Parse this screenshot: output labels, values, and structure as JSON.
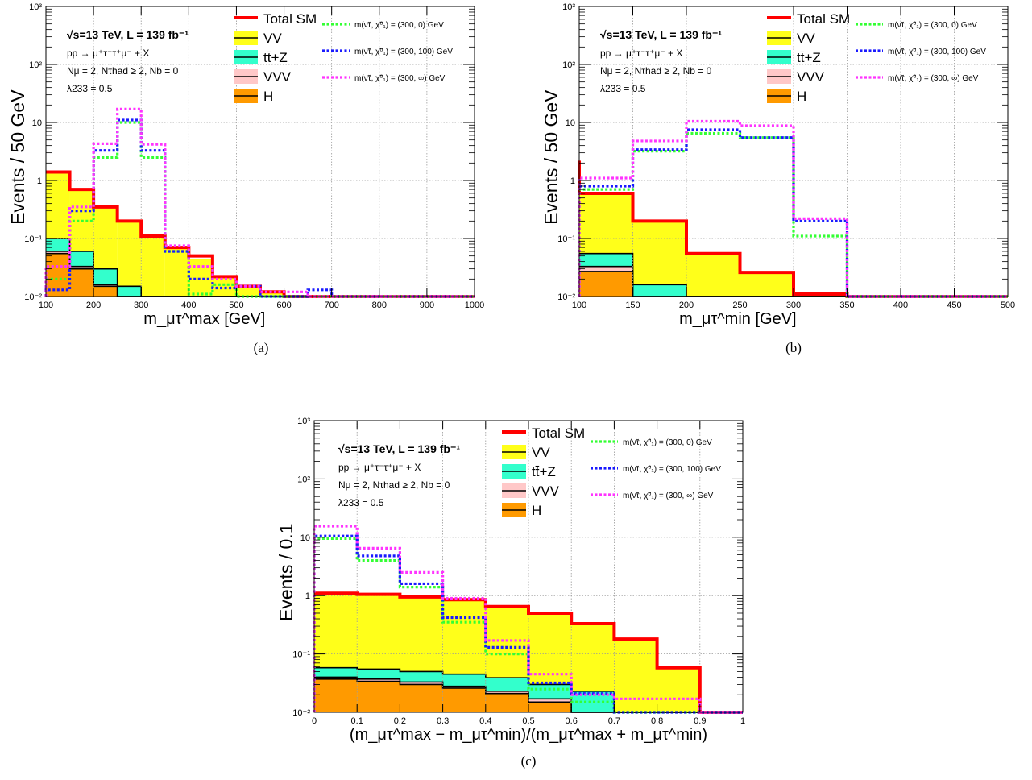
{
  "colors": {
    "total_sm": "#ff0000",
    "vv": "#ffff1a",
    "ttz": "#33ffcc",
    "vvv": "#ffc8c8",
    "h": "#ff9a00",
    "sig1": "#33ff33",
    "sig2": "#1a1aff",
    "sig3": "#ff33ff",
    "grid": "#999999"
  },
  "legend": {
    "total_sm": "Total SM",
    "vv": "VV",
    "ttz": "tt̄+Z",
    "vvv": "VVV",
    "h": "H",
    "sig1": "m(ν̃τ, χ̃⁰₁) = (300, 0) GeV",
    "sig2": "m(ν̃τ, χ̃⁰₁) = (300, 100) GeV",
    "sig3": "m(ν̃τ, χ̃⁰₁) = (300, ∞) GeV"
  },
  "info": {
    "line1": "√s=13 TeV, L = 139 fb⁻¹",
    "line2": "pp → μ⁺τ⁻τ⁺μ⁻ + X",
    "line3": "Nμ = 2, Nτhad ≥ 2, Nb = 0",
    "line4": "λ233 = 0.5"
  },
  "captions": {
    "a": "(a)",
    "b": "(b)",
    "c": "(c)"
  },
  "chart_data": [
    {
      "id": "a",
      "type": "bar",
      "stacked": true,
      "log_y": true,
      "ylabel": "Events / 50 GeV",
      "xlabel": "m_μτ^max [GeV]",
      "xlim": [
        100,
        1000
      ],
      "ylim": [
        0.01,
        1000
      ],
      "grid": true,
      "x_ticks": [
        100,
        200,
        300,
        400,
        500,
        600,
        700,
        800,
        900,
        1000
      ],
      "y_ticks": [
        "10⁻²",
        "10⁻¹",
        "1",
        "10",
        "10²",
        "10³"
      ],
      "edges": [
        100,
        150,
        200,
        250,
        300,
        350,
        400,
        450,
        500,
        550,
        600,
        650,
        700,
        750,
        800,
        850,
        900,
        950,
        1000
      ],
      "stack": [
        {
          "name": "H",
          "values": [
            0.055,
            0.03,
            0.015,
            0.01,
            0.01,
            0.01,
            0.01,
            0.01,
            0.01,
            0.01,
            0.01,
            0.01,
            0.01,
            0.01,
            0.01,
            0.01,
            0.01,
            0.01
          ]
        },
        {
          "name": "VVV",
          "values": [
            0.06,
            0.033,
            0.016,
            0.01,
            0.01,
            0.01,
            0.01,
            0.01,
            0.01,
            0.01,
            0.01,
            0.01,
            0.01,
            0.01,
            0.01,
            0.01,
            0.01,
            0.01
          ]
        },
        {
          "name": "ttZ",
          "values": [
            0.1,
            0.06,
            0.03,
            0.015,
            0.01,
            0.01,
            0.01,
            0.01,
            0.01,
            0.01,
            0.01,
            0.01,
            0.01,
            0.01,
            0.01,
            0.01,
            0.01,
            0.01
          ]
        },
        {
          "name": "VV",
          "values": [
            1.4,
            0.7,
            0.35,
            0.2,
            0.11,
            0.07,
            0.045,
            0.022,
            0.015,
            0.012,
            0.01,
            0.01,
            0.01,
            0.01,
            0.01,
            0.01,
            0.01,
            0.01
          ]
        }
      ],
      "total": [
        1.4,
        0.7,
        0.35,
        0.2,
        0.11,
        0.07,
        0.05,
        0.022,
        0.015,
        0.012,
        0.01,
        0.01,
        0.01,
        0.01,
        0.01,
        0.01,
        0.01,
        0.01
      ],
      "signals": [
        {
          "name": "sig1",
          "values": [
            0.02,
            0.2,
            2.5,
            10,
            2.5,
            0.06,
            0.011,
            0.016,
            0.01,
            0.01,
            0.01,
            0.01,
            0.01,
            0.01,
            0.01,
            0.01,
            0.01,
            0.01
          ]
        },
        {
          "name": "sig2",
          "values": [
            0.013,
            0.3,
            3.3,
            11,
            3.3,
            0.06,
            0.02,
            0.014,
            0.015,
            0.01,
            0.01,
            0.013,
            0.01,
            0.01,
            0.01,
            0.01,
            0.01,
            0.01
          ]
        },
        {
          "name": "sig3",
          "values": [
            0.033,
            0.35,
            4.3,
            17,
            4.2,
            0.075,
            0.033,
            0.02,
            0.015,
            0.012,
            0.012,
            0.01,
            0.01,
            0.01,
            0.01,
            0.01,
            0.01,
            0.01
          ]
        }
      ]
    },
    {
      "id": "b",
      "type": "bar",
      "stacked": true,
      "log_y": true,
      "ylabel": "Events / 50 GeV",
      "xlabel": "m_μτ^min [GeV]",
      "xlim": [
        100,
        500
      ],
      "ylim": [
        0.01,
        1000
      ],
      "grid": true,
      "x_ticks": [
        100,
        150,
        200,
        250,
        300,
        350,
        400,
        450,
        500
      ],
      "y_ticks": [
        "10⁻²",
        "10⁻¹",
        "1",
        "10",
        "10²",
        "10³"
      ],
      "edges": [
        100,
        150,
        200,
        250,
        300,
        350,
        400,
        450,
        500
      ],
      "stack": [
        {
          "name": "H",
          "values": [
            0.027,
            0.01,
            0.01,
            0.01,
            0.01,
            0.01,
            0.01,
            0.01
          ]
        },
        {
          "name": "VVV",
          "values": [
            0.033,
            0.01,
            0.01,
            0.01,
            0.01,
            0.01,
            0.01,
            0.01
          ]
        },
        {
          "name": "ttZ",
          "values": [
            0.055,
            0.016,
            0.01,
            0.01,
            0.01,
            0.01,
            0.01,
            0.01
          ]
        },
        {
          "name": "VV",
          "values": [
            0.6,
            0.2,
            0.055,
            0.026,
            0.011,
            0.01,
            0.01,
            0.01
          ]
        }
      ],
      "total": [
        0.6,
        0.2,
        0.055,
        0.026,
        0.011,
        0.01,
        0.01,
        0.01
      ],
      "total_first_bin_peak": 2.2,
      "signals": [
        {
          "name": "sig1",
          "values": [
            0.7,
            3.2,
            6.5,
            5.5,
            0.11,
            0.01,
            0.01,
            0.01
          ]
        },
        {
          "name": "sig2",
          "values": [
            0.8,
            3.4,
            7.5,
            5.5,
            0.2,
            0.01,
            0.01,
            0.01
          ]
        },
        {
          "name": "sig3",
          "values": [
            1.1,
            4.8,
            10.5,
            8.8,
            0.22,
            0.01,
            0.01,
            0.01
          ]
        }
      ]
    },
    {
      "id": "c",
      "type": "bar",
      "stacked": true,
      "log_y": true,
      "ylabel": "Events / 0.1",
      "xlabel": "(m_μτ^max − m_μτ^min)/(m_μτ^max + m_μτ^min)",
      "xlim": [
        0,
        1
      ],
      "ylim": [
        0.01,
        1000
      ],
      "grid": true,
      "x_ticks": [
        0,
        0.1,
        0.2,
        0.3,
        0.4,
        0.5,
        0.6,
        0.7,
        0.8,
        0.9,
        1
      ],
      "y_ticks": [
        "10⁻²",
        "10⁻¹",
        "1",
        "10",
        "10²",
        "10³"
      ],
      "edges": [
        0,
        0.1,
        0.2,
        0.3,
        0.4,
        0.5,
        0.6,
        0.7,
        0.8,
        0.9,
        1
      ],
      "stack": [
        {
          "name": "H",
          "values": [
            0.037,
            0.034,
            0.03,
            0.026,
            0.021,
            0.015,
            0.01,
            0.01,
            0.01,
            0.01
          ]
        },
        {
          "name": "VVV",
          "values": [
            0.04,
            0.037,
            0.033,
            0.028,
            0.023,
            0.017,
            0.01,
            0.01,
            0.01,
            0.01
          ]
        },
        {
          "name": "ttZ",
          "values": [
            0.058,
            0.055,
            0.05,
            0.045,
            0.039,
            0.03,
            0.023,
            0.01,
            0.01,
            0.01
          ]
        },
        {
          "name": "VV",
          "values": [
            1.1,
            1.05,
            0.95,
            0.85,
            0.65,
            0.5,
            0.33,
            0.18,
            0.058,
            0.01
          ]
        }
      ],
      "total": [
        1.1,
        1.05,
        0.95,
        0.85,
        0.65,
        0.5,
        0.33,
        0.18,
        0.058,
        0.01
      ],
      "signals": [
        {
          "name": "sig1",
          "values": [
            9.5,
            4.0,
            1.4,
            0.35,
            0.1,
            0.025,
            0.015,
            0.01,
            0.01,
            0.01
          ]
        },
        {
          "name": "sig2",
          "values": [
            10.5,
            4.8,
            1.6,
            0.42,
            0.13,
            0.032,
            0.021,
            0.01,
            0.01,
            0.01
          ]
        },
        {
          "name": "sig3",
          "values": [
            15.5,
            6.5,
            2.5,
            0.9,
            0.17,
            0.045,
            0.02,
            0.017,
            0.017,
            0.01
          ]
        }
      ]
    }
  ]
}
